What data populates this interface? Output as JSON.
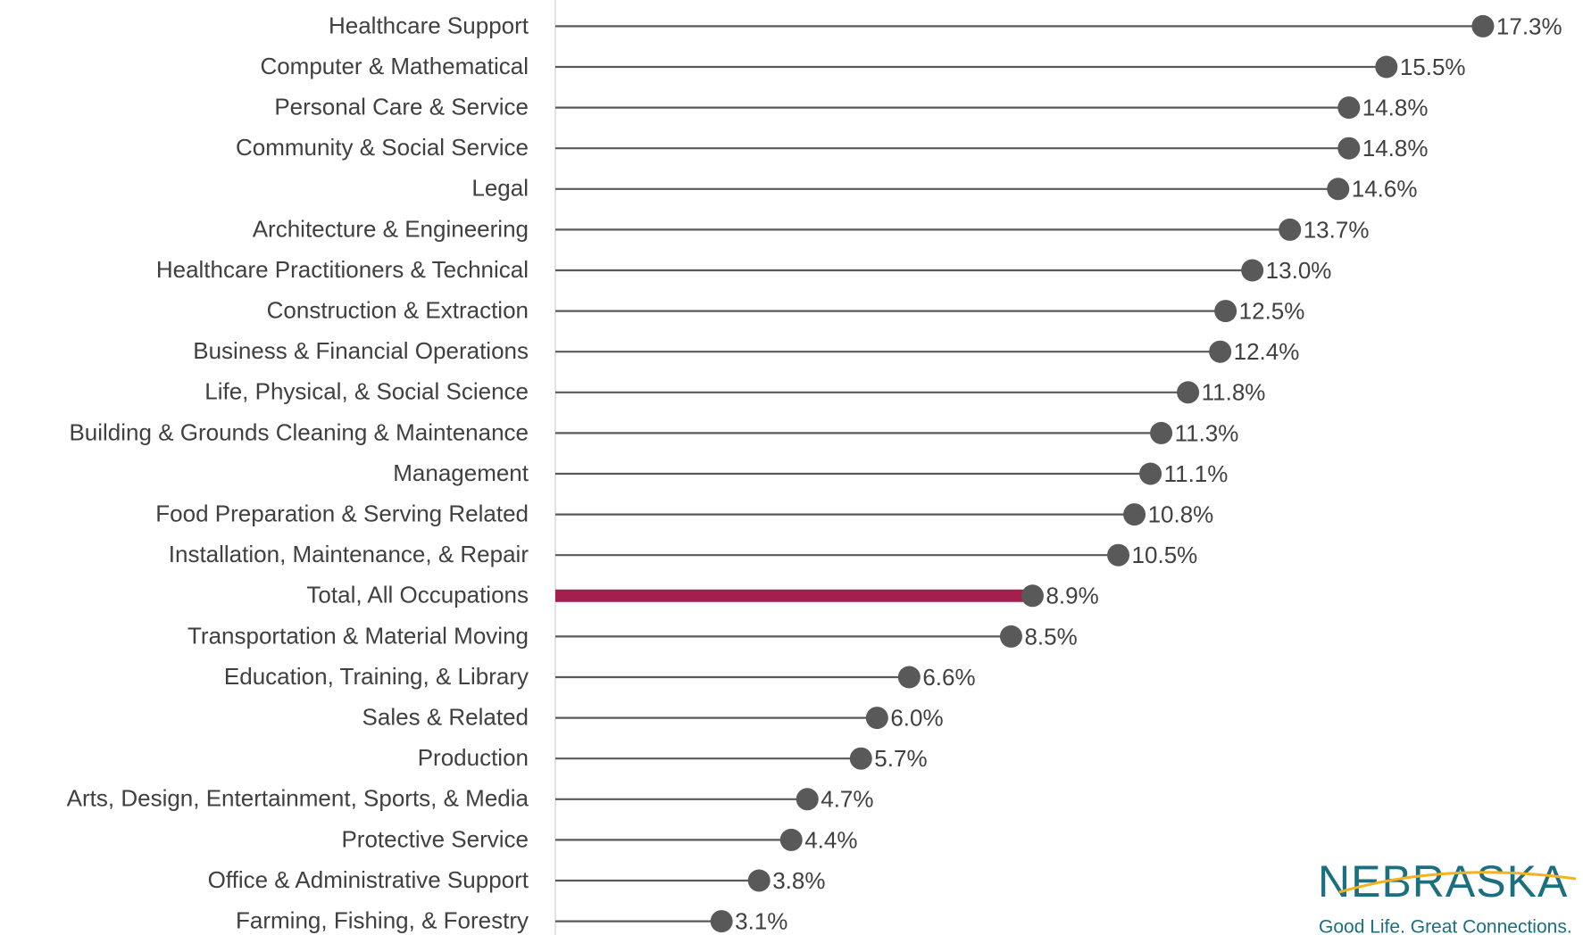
{
  "chart_data": {
    "type": "lollipop",
    "categories": [
      "Healthcare Support",
      "Computer & Mathematical",
      "Personal Care & Service",
      "Community & Social Service",
      "Legal",
      "Architecture & Engineering",
      "Healthcare Practitioners & Technical",
      "Construction & Extraction",
      "Business & Financial Operations",
      "Life, Physical, & Social Science",
      "Building & Grounds Cleaning & Maintenance",
      "Management",
      "Food Preparation & Serving Related",
      "Installation, Maintenance, & Repair",
      "Total, All Occupations",
      "Transportation & Material Moving",
      "Education, Training, & Library",
      "Sales & Related",
      "Production",
      "Arts, Design, Entertainment, Sports, & Media",
      "Protective Service",
      "Office & Administrative Support",
      "Farming, Fishing, & Forestry"
    ],
    "values": [
      17.3,
      15.5,
      14.8,
      14.8,
      14.6,
      13.7,
      13.0,
      12.5,
      12.4,
      11.8,
      11.3,
      11.1,
      10.8,
      10.5,
      8.9,
      8.5,
      6.6,
      6.0,
      5.7,
      4.7,
      4.4,
      3.8,
      3.1
    ],
    "value_labels": [
      "17.3%",
      "15.5%",
      "14.8%",
      "14.8%",
      "14.6%",
      "13.7%",
      "13.0%",
      "12.5%",
      "12.4%",
      "11.8%",
      "11.3%",
      "11.1%",
      "10.8%",
      "10.5%",
      "8.9%",
      "8.5%",
      "6.6%",
      "6.0%",
      "5.7%",
      "4.7%",
      "4.4%",
      "3.8%",
      "3.1%"
    ],
    "color": "#595959",
    "stem_colors": [
      "#595959",
      "#595959",
      "#595959",
      "#595959",
      "#595959",
      "#595959",
      "#595959",
      "#595959",
      "#595959",
      "#595959",
      "#595959",
      "#595959",
      "#595959",
      "#595959",
      "#a51f4e",
      "#595959",
      "#595959",
      "#595959",
      "#595959",
      "#595959",
      "#595959",
      "#595959",
      "#595959"
    ],
    "xlim": [
      0,
      19
    ]
  },
  "logo": {
    "name": "NEBRASKA",
    "tagline": "Good Life. Great Connections."
  }
}
